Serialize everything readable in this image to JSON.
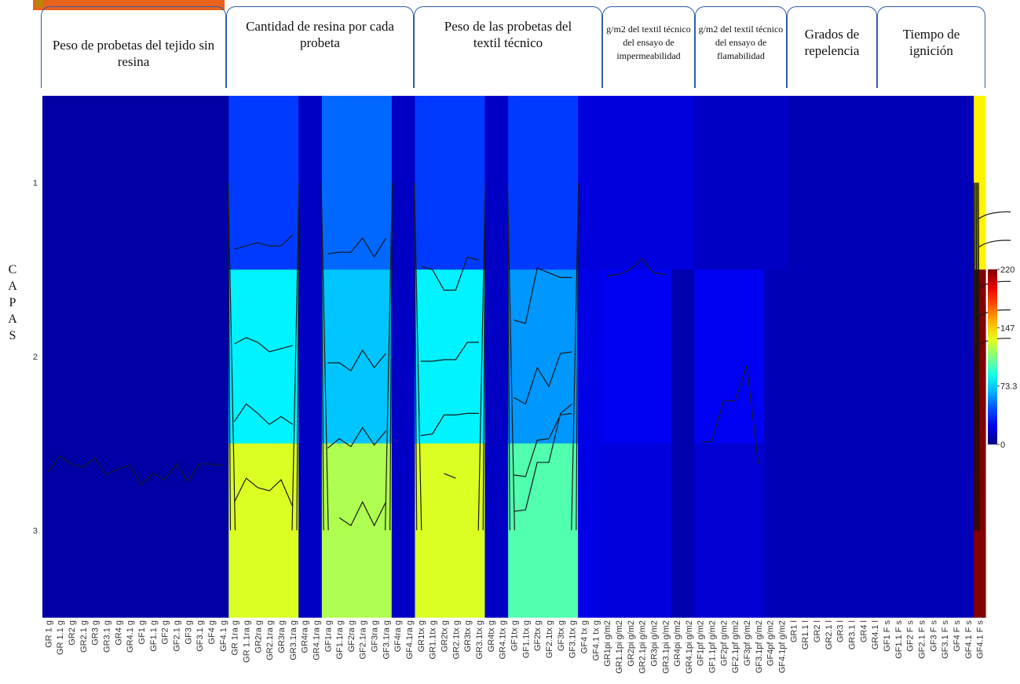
{
  "groups": [
    {
      "label": "Peso de probetas del tejido sin resina",
      "font": 17
    },
    {
      "label": "Cantidad de resina por cada probeta",
      "font": 17
    },
    {
      "label": "Peso de las probetas del textil técnico",
      "font": 17
    },
    {
      "label": "g/m2 del textil técnico del ensayo de impermeabilidad",
      "font": 12
    },
    {
      "label": "g/m2 del textil técnico del ensayo de flamabilidad",
      "font": 12
    },
    {
      "label": "Grados de repelencia",
      "font": 17
    },
    {
      "label": "Tiempo de ignición",
      "font": 17
    }
  ],
  "capas_label": [
    "C",
    "A",
    "P",
    "A",
    "S"
  ],
  "chart_data": {
    "type": "heatmap",
    "title": "",
    "xlabel": "",
    "ylabel": "CAPAS",
    "rows": [
      "1",
      "2",
      "3"
    ],
    "colorbar": {
      "min": 0,
      "max": 220,
      "ticks": [
        "220",
        "147",
        "73.3",
        "0"
      ]
    },
    "x": [
      "GR 1 g",
      "GR 1.1 g",
      "GR2 g",
      "GR2.1 g",
      "GR3 g",
      "GR3.1 g",
      "GR4 g",
      "GR4.1 g",
      "GF1 g",
      "GF1.1 g",
      "GF2 g",
      "GF2.1 g",
      "GF3 g",
      "GF3.1 g",
      "GF4 g",
      "GF4.1 g",
      "GR 1ra g",
      "GR 1.1ra g",
      "GR2ra g",
      "GR2.1ra g",
      "GR3ra g",
      "GR3.1ra g",
      "GR4ra g",
      "GR4.1ra g",
      "GF1ra g",
      "GF1.1ra g",
      "GF2ra g",
      "GF2.1ra g",
      "GF3ra g",
      "GF3.1ra g",
      "GF4ra g",
      "GF4.1ra g",
      "GR1tx g",
      "GR1.1tx g",
      "GR2tx g",
      "GR2.1tx g",
      "GR3tx g",
      "GR3.1tx g",
      "GR4tx g",
      "GR4.1tx g",
      "GF1tx g",
      "GF1.1tx g",
      "GF2tx g",
      "GF2.1tx g",
      "GF3tx g",
      "GF3.1tx g",
      "GF4 tx g",
      "GF4.1 tx g",
      "GR1pi g/m2",
      "GR1.1pi g/m2",
      "GR2pi g/m2",
      "GR2.1pi g/m2",
      "GR3pi g/m2",
      "GR3.1pi g/m2",
      "GR4pi g/m2",
      "GR4.1pi g/m2",
      "GF1pf g/m2",
      "GF1.1pf g/m2",
      "GF2pf g/m2",
      "GF2.1pf g/m2",
      "GF3pf g/m2",
      "GF3.1pf g/m2",
      "GF4pf g/m2",
      "GF4.1pf g/m2",
      "GR1 l",
      "GR1.1 l",
      "GR2 l",
      "GR2.1 l",
      "GR3 l",
      "GR3.1 l",
      "GR4 l",
      "GR4.1 l",
      "GF1 F s",
      "GF1.1 F s",
      "GF2 F s",
      "GF2.1 F s",
      "GF3 F s",
      "GF3.1 F s",
      "GF4 F s",
      "GF4.1 F s",
      "GF4.1 F s"
    ],
    "values_by_row": [
      [
        8,
        8,
        8,
        8,
        8,
        8,
        8,
        8,
        8,
        8,
        8,
        8,
        8,
        8,
        8,
        8,
        40,
        40,
        40,
        40,
        40,
        40,
        15,
        15,
        50,
        50,
        50,
        50,
        50,
        50,
        15,
        15,
        40,
        40,
        40,
        40,
        40,
        40,
        15,
        15,
        40,
        40,
        40,
        40,
        40,
        40,
        20,
        20,
        20,
        20,
        20,
        20,
        20,
        20,
        20,
        20,
        15,
        15,
        15,
        15,
        15,
        15,
        15,
        15,
        12,
        12,
        12,
        12,
        12,
        12,
        12,
        12,
        12,
        12,
        12,
        12,
        12,
        12,
        12,
        12,
        140
      ],
      [
        8,
        8,
        8,
        8,
        8,
        8,
        8,
        8,
        8,
        8,
        8,
        8,
        8,
        8,
        8,
        8,
        80,
        80,
        80,
        80,
        80,
        80,
        15,
        15,
        70,
        70,
        70,
        70,
        70,
        70,
        15,
        15,
        80,
        80,
        80,
        80,
        80,
        80,
        15,
        15,
        60,
        60,
        60,
        60,
        60,
        60,
        22,
        22,
        25,
        25,
        25,
        25,
        25,
        25,
        10,
        10,
        25,
        25,
        25,
        25,
        25,
        25,
        12,
        12,
        12,
        12,
        12,
        12,
        12,
        12,
        12,
        12,
        12,
        12,
        12,
        12,
        12,
        12,
        12,
        12,
        220
      ],
      [
        8,
        8,
        8,
        8,
        8,
        8,
        8,
        8,
        8,
        8,
        8,
        8,
        8,
        8,
        8,
        8,
        130,
        130,
        130,
        130,
        130,
        130,
        15,
        15,
        120,
        120,
        120,
        120,
        120,
        120,
        15,
        15,
        130,
        130,
        130,
        130,
        130,
        130,
        15,
        15,
        100,
        100,
        100,
        100,
        100,
        100,
        22,
        22,
        20,
        20,
        20,
        20,
        20,
        20,
        10,
        10,
        18,
        18,
        18,
        18,
        18,
        18,
        12,
        12,
        12,
        12,
        12,
        12,
        12,
        12,
        12,
        12,
        12,
        12,
        12,
        12,
        12,
        12,
        12,
        12,
        220
      ]
    ],
    "profile_scale": [
      0,
      220
    ],
    "profiles": [
      {
        "points": [
          [
            0,
            37
          ],
          [
            1,
            47
          ],
          [
            2,
            42
          ],
          [
            3,
            40
          ],
          [
            4,
            46
          ],
          [
            5,
            35
          ],
          [
            6,
            39
          ],
          [
            7,
            41
          ],
          [
            8,
            29
          ],
          [
            9,
            36
          ],
          [
            10,
            32
          ],
          [
            11,
            42
          ],
          [
            12,
            31
          ],
          [
            13,
            42
          ],
          [
            14,
            42
          ],
          [
            15,
            41
          ]
        ]
      },
      {
        "points": [
          [
            16,
            178
          ],
          [
            17,
            180
          ],
          [
            18,
            182
          ],
          [
            19,
            180
          ],
          [
            20,
            180
          ],
          [
            21,
            187
          ]
        ]
      },
      {
        "points": [
          [
            16,
            118
          ],
          [
            17,
            122
          ],
          [
            18,
            119
          ],
          [
            19,
            113
          ],
          [
            20,
            115
          ],
          [
            21,
            117
          ]
        ]
      },
      {
        "points": [
          [
            16,
            69
          ],
          [
            17,
            80
          ],
          [
            18,
            74
          ],
          [
            19,
            67
          ],
          [
            20,
            72
          ],
          [
            21,
            67
          ]
        ]
      },
      {
        "points": [
          [
            16,
            18
          ],
          [
            17,
            33
          ],
          [
            18,
            27
          ],
          [
            19,
            25
          ],
          [
            20,
            32
          ],
          [
            21,
            15
          ]
        ]
      },
      {
        "points": [
          [
            24,
            175
          ],
          [
            25,
            176
          ],
          [
            26,
            176
          ],
          [
            27,
            185
          ],
          [
            28,
            173
          ],
          [
            29,
            185
          ]
        ]
      },
      {
        "points": [
          [
            24,
            106
          ],
          [
            25,
            106
          ],
          [
            26,
            101
          ],
          [
            27,
            114
          ],
          [
            28,
            103
          ],
          [
            29,
            112
          ]
        ]
      },
      {
        "points": [
          [
            24,
            52
          ],
          [
            25,
            58
          ],
          [
            26,
            53
          ],
          [
            27,
            65
          ],
          [
            28,
            54
          ],
          [
            29,
            63
          ]
        ]
      },
      {
        "points": [
          [
            25,
            8
          ],
          [
            26,
            3
          ],
          [
            27,
            18
          ],
          [
            28,
            3
          ],
          [
            29,
            18
          ]
        ]
      },
      {
        "points": [
          [
            32,
            167
          ],
          [
            33,
            165
          ],
          [
            34,
            152
          ],
          [
            35,
            152
          ],
          [
            36,
            173
          ],
          [
            37,
            171
          ]
        ]
      },
      {
        "points": [
          [
            32,
            107
          ],
          [
            33,
            107
          ],
          [
            34,
            108
          ],
          [
            35,
            108
          ],
          [
            36,
            119
          ],
          [
            37,
            119
          ]
        ]
      },
      {
        "points": [
          [
            32,
            60
          ],
          [
            33,
            61
          ],
          [
            34,
            73
          ],
          [
            35,
            73
          ],
          [
            36,
            74
          ],
          [
            37,
            74
          ]
        ]
      },
      {
        "points": [
          [
            34,
            36
          ],
          [
            35,
            33
          ]
        ]
      },
      {
        "points": [
          [
            40,
            133
          ],
          [
            41,
            131
          ],
          [
            42,
            166
          ],
          [
            43,
            163
          ],
          [
            44,
            160
          ],
          [
            45,
            160
          ]
        ]
      },
      {
        "points": [
          [
            40,
            84
          ],
          [
            41,
            80
          ],
          [
            42,
            103
          ],
          [
            43,
            91
          ],
          [
            44,
            112
          ],
          [
            45,
            113
          ]
        ]
      },
      {
        "points": [
          [
            40,
            35
          ],
          [
            41,
            34
          ],
          [
            42,
            57
          ],
          [
            43,
            58
          ],
          [
            44,
            73
          ],
          [
            45,
            74
          ]
        ]
      },
      {
        "points": [
          [
            40,
            12
          ],
          [
            41,
            13
          ],
          [
            42,
            43
          ],
          [
            43,
            43
          ],
          [
            44,
            74
          ],
          [
            45,
            80
          ]
        ]
      },
      {
        "points": [
          [
            48,
            161
          ],
          [
            49,
            162
          ],
          [
            50,
            165
          ],
          [
            51,
            172
          ],
          [
            52,
            163
          ],
          [
            53,
            162
          ]
        ]
      },
      {
        "points": [
          [
            56,
            56
          ],
          [
            57,
            56
          ],
          [
            58,
            82
          ],
          [
            59,
            82
          ],
          [
            60,
            104
          ],
          [
            61,
            42
          ]
        ]
      }
    ]
  }
}
